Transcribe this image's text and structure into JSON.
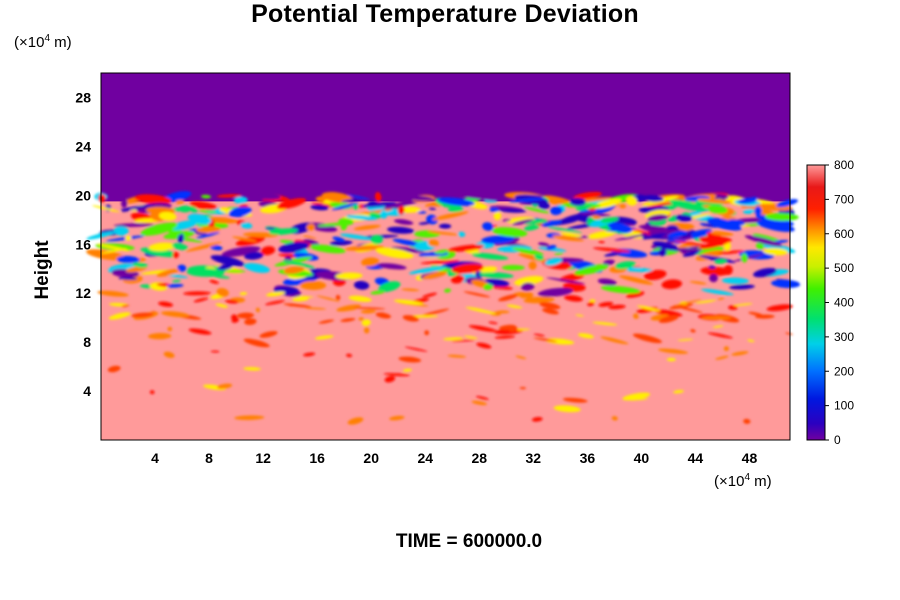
{
  "chart_data": {
    "type": "heatmap",
    "title": "Potential Temperature Deviation",
    "ylabel": "Height",
    "y_unit": {
      "prefix": "(×10",
      "exp": "4",
      "suffix": " m)"
    },
    "x_unit": {
      "prefix": "(×10",
      "exp": "4",
      "suffix": " m)"
    },
    "x_ticks": [
      "4",
      "8",
      "12",
      "16",
      "20",
      "24",
      "28",
      "32",
      "36",
      "40",
      "44",
      "48"
    ],
    "y_ticks": [
      "4",
      "8",
      "12",
      "16",
      "20",
      "24",
      "28"
    ],
    "xlim": [
      0,
      51
    ],
    "ylim": [
      0,
      30
    ],
    "colorbar": {
      "ticks": [
        "0",
        "100",
        "200",
        "300",
        "400",
        "500",
        "600",
        "700",
        "800"
      ],
      "range": [
        0,
        800
      ]
    },
    "regions": [
      {
        "y_range": [
          19.5,
          30
        ],
        "value": 0
      },
      {
        "y_range": [
          0,
          19.5
        ],
        "value": 800
      }
    ],
    "footer": "TIME = 600000.0"
  }
}
